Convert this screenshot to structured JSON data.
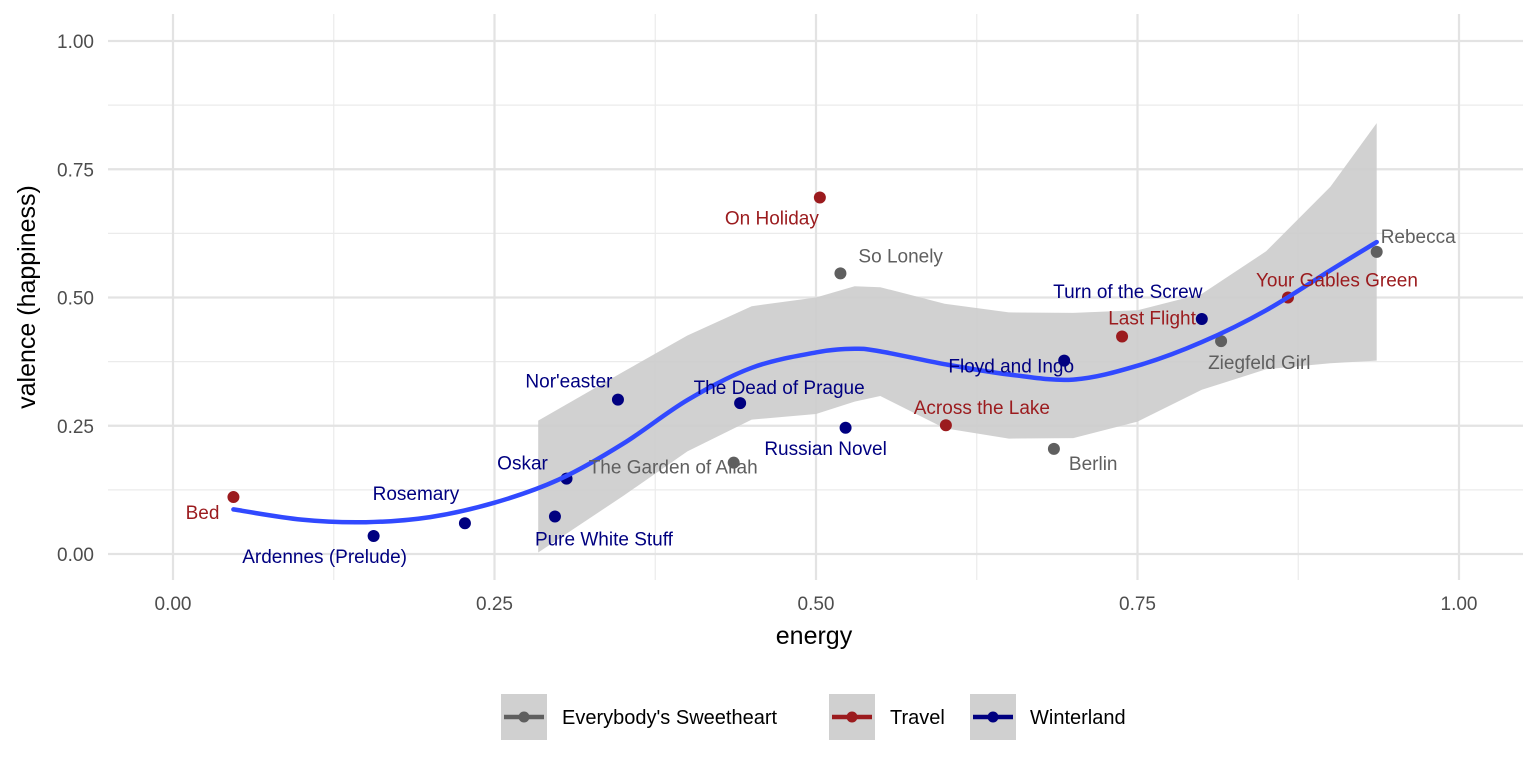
{
  "chart_data": {
    "type": "scatter",
    "xlabel": "energy",
    "ylabel": "valence (happiness)",
    "xlim": [
      -0.05,
      1.05
    ],
    "ylim": [
      -0.03,
      1.03
    ],
    "x_ticks": [
      0.0,
      0.25,
      0.5,
      0.75,
      1.0
    ],
    "x_tick_labels": [
      "0.00",
      "0.25",
      "0.50",
      "0.75",
      "1.00"
    ],
    "y_ticks": [
      0.0,
      0.25,
      0.5,
      0.75,
      1.0
    ],
    "y_tick_labels": [
      "0.00",
      "0.25",
      "0.50",
      "0.75",
      "1.00"
    ],
    "grid": true,
    "legend_position": "bottom",
    "series": [
      {
        "name": "Everybody's Sweetheart",
        "color": "#5f5f5f",
        "points": [
          {
            "label": "So Lonely",
            "x": 0.519,
            "y": 0.547
          },
          {
            "label": "The Garden of Allah",
            "x": 0.436,
            "y": 0.178
          },
          {
            "label": "Berlin",
            "x": 0.685,
            "y": 0.205
          },
          {
            "label": "Ziegfeld Girl",
            "x": 0.815,
            "y": 0.415
          },
          {
            "label": "Rebecca",
            "x": 0.936,
            "y": 0.589
          }
        ]
      },
      {
        "name": "Travel",
        "color": "#9b1b1e",
        "points": [
          {
            "label": "Bed",
            "x": 0.047,
            "y": 0.111
          },
          {
            "label": "On Holiday",
            "x": 0.503,
            "y": 0.695
          },
          {
            "label": "Across the Lake",
            "x": 0.601,
            "y": 0.251
          },
          {
            "label": "Last Flight",
            "x": 0.738,
            "y": 0.424
          },
          {
            "label": "Your Gables Green",
            "x": 0.867,
            "y": 0.5
          }
        ]
      },
      {
        "name": "Winterland",
        "color": "#000080",
        "points": [
          {
            "label": "Ardennes (Prelude)",
            "x": 0.156,
            "y": 0.035
          },
          {
            "label": "Rosemary",
            "x": 0.227,
            "y": 0.06
          },
          {
            "label": "Pure White Stuff",
            "x": 0.297,
            "y": 0.073
          },
          {
            "label": "Oskar",
            "x": 0.306,
            "y": 0.147
          },
          {
            "label": "Nor'easter",
            "x": 0.346,
            "y": 0.301
          },
          {
            "label": "The Dead of Prague",
            "x": 0.441,
            "y": 0.294
          },
          {
            "label": "Russian Novel",
            "x": 0.523,
            "y": 0.246
          },
          {
            "label": "Floyd and Ingo",
            "x": 0.693,
            "y": 0.377
          },
          {
            "label": "Turn of the Screw",
            "x": 0.8,
            "y": 0.458
          }
        ]
      }
    ],
    "smooth": {
      "color": "#3149ff",
      "band_color": "#cccccc",
      "x": [
        0.047,
        0.1,
        0.15,
        0.2,
        0.25,
        0.3,
        0.35,
        0.4,
        0.45,
        0.5,
        0.53,
        0.55,
        0.6,
        0.65,
        0.7,
        0.75,
        0.8,
        0.85,
        0.9,
        0.936
      ],
      "y": [
        0.087,
        0.067,
        0.062,
        0.072,
        0.1,
        0.145,
        0.215,
        0.3,
        0.363,
        0.393,
        0.4,
        0.395,
        0.37,
        0.35,
        0.34,
        0.367,
        0.413,
        0.475,
        0.553,
        0.608
      ],
      "band_x": [
        0.284,
        0.35,
        0.4,
        0.45,
        0.5,
        0.53,
        0.55,
        0.6,
        0.65,
        0.7,
        0.75,
        0.8,
        0.85,
        0.9,
        0.936
      ],
      "band_low": [
        0.003,
        0.113,
        0.2,
        0.262,
        0.273,
        0.297,
        0.308,
        0.245,
        0.225,
        0.226,
        0.258,
        0.32,
        0.36,
        0.372,
        0.377
      ],
      "band_high": [
        0.26,
        0.355,
        0.426,
        0.483,
        0.5,
        0.522,
        0.52,
        0.488,
        0.471,
        0.47,
        0.475,
        0.507,
        0.59,
        0.716,
        0.84
      ]
    }
  }
}
